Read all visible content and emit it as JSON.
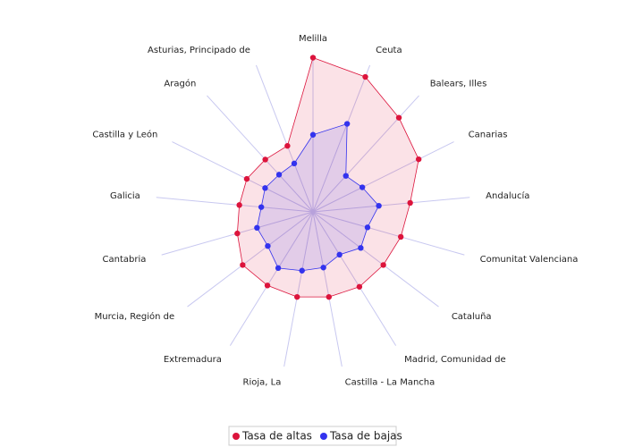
{
  "chart_data": {
    "type": "radar",
    "categories": [
      "Melilla",
      "Ceuta",
      "Balears, Illes",
      "Canarias",
      "Andalucía",
      "Comunitat Valenciana",
      "Cataluña",
      "Madrid, Comunidad de",
      "Castilla - La Mancha",
      "Rioja, La",
      "Extremadura",
      "Murcia, Región de",
      "Cantabria",
      "Galicia",
      "Castilla y León",
      "Aragón",
      "Asturias, Principado de"
    ],
    "ylim": [
      0,
      100
    ],
    "series": [
      {
        "name": "Tasa de altas",
        "color": "#dc143c",
        "values": [
          98,
          92,
          81,
          75,
          62,
          58,
          56,
          56,
          55,
          55,
          55,
          56,
          50,
          47,
          47,
          45,
          45
        ]
      },
      {
        "name": "Tasa de bajas",
        "color": "#3333ee",
        "values": [
          49,
          60,
          31,
          35,
          42,
          36,
          38,
          32,
          36,
          38,
          42,
          36,
          37,
          33,
          34,
          32,
          33
        ]
      }
    ]
  }
}
